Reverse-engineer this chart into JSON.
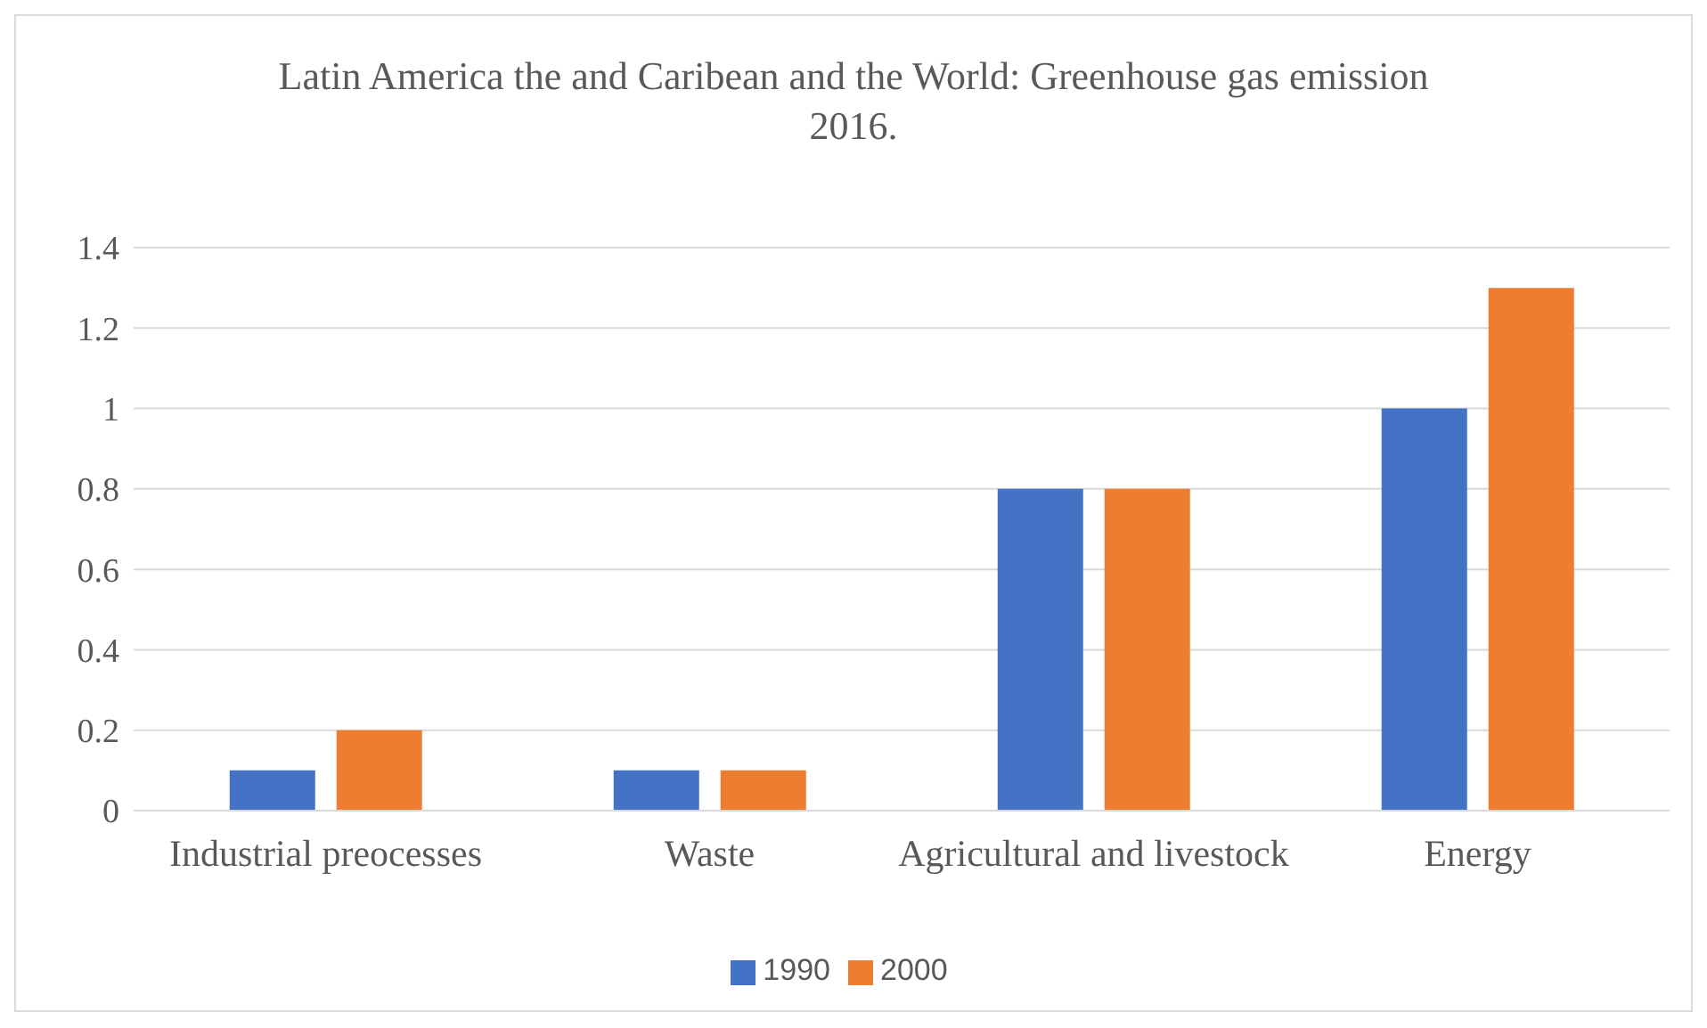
{
  "chart_data": {
    "type": "bar",
    "title": "Latin America the and Caribean and the World: Greenhouse gas emission 2016.",
    "categories": [
      "Industrial preocesses",
      "Waste",
      "Agricultural and livestock",
      "Energy"
    ],
    "series": [
      {
        "name": "1990",
        "color": "#4472c4",
        "values": [
          0.1,
          0.1,
          0.8,
          1.0
        ]
      },
      {
        "name": "2000",
        "color": "#ed7d31",
        "values": [
          0.2,
          0.1,
          0.8,
          1.3
        ]
      }
    ],
    "ylim": [
      0,
      1.4
    ],
    "yticks": [
      0,
      0.2,
      0.4,
      0.6,
      0.8,
      1,
      1.2,
      1.4
    ],
    "grid": "y",
    "legend": "bottom"
  }
}
